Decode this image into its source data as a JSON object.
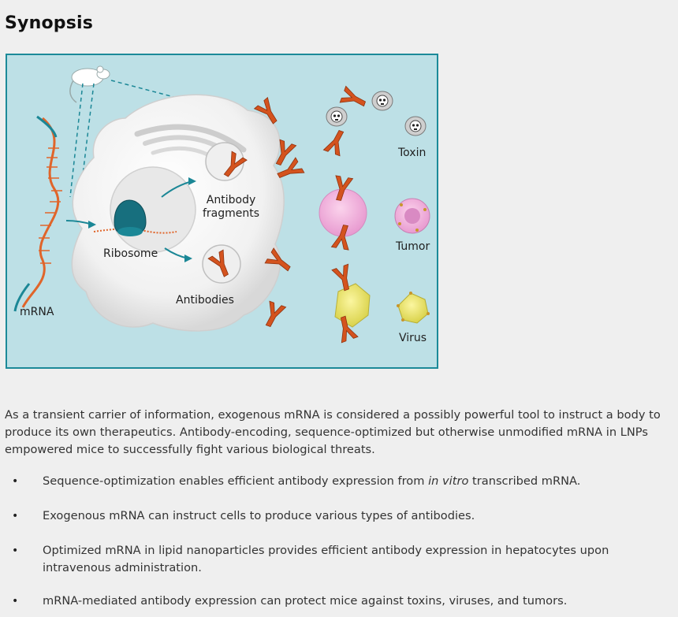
{
  "title": "Synopsis",
  "figure": {
    "labels": {
      "mrna": "mRNA",
      "ribosome": "Ribosome",
      "antibody_fragments": "Antibody\nfragments",
      "antibodies": "Antibodies",
      "toxin": "Toxin",
      "tumor": "Tumor",
      "virus": "Virus"
    },
    "colors": {
      "background": "#bde0e6",
      "border": "#1c8a99",
      "antibody": "#d4531e",
      "mrna_teal": "#1b8796",
      "mrna_orange": "#e0652a"
    }
  },
  "paragraph": "As a transient carrier of information, exogenous mRNA is considered a possibly powerful tool to instruct a body to produce its own therapeutics. Antibody-encoding, sequence-optimized but otherwise unmodified mRNA in LNPs empowered mice to successfully fight various biological threats.",
  "bullets": [
    {
      "before": "Sequence-optimization enables efficient antibody expression from ",
      "italic": "in vitro",
      "after": " transcribed mRNA."
    },
    {
      "before": "Exogenous mRNA can instruct cells to produce various types of antibodies.",
      "italic": "",
      "after": ""
    },
    {
      "before": "Optimized mRNA in lipid nanoparticles provides efficient antibody expression in hepatocytes upon intravenous administration.",
      "italic": "",
      "after": ""
    },
    {
      "before": "mRNA-mediated antibody expression can protect mice against toxins, viruses, and tumors.",
      "italic": "",
      "after": ""
    }
  ]
}
